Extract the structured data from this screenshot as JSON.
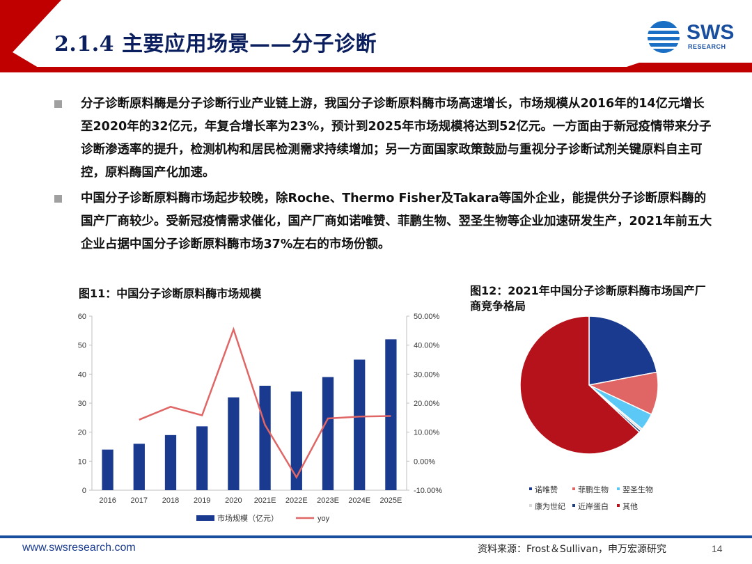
{
  "header": {
    "title": "2.1.4 主要应用场景——分子诊断",
    "logo_text": "SWS",
    "logo_sub": "RESEARCH"
  },
  "colors": {
    "header_red": "#c00000",
    "navy": "#1a3a8f",
    "line_red": "#e06666"
  },
  "bullets": [
    "分子诊断原料酶是分子诊断行业产业链上游，我国分子诊断原料酶市场高速增长，市场规模从2016年的14亿元增长至2020年的32亿元，年复合增长率为23%，预计到2025年市场规模将达到52亿元。一方面由于新冠疫情带来分子诊断渗透率的提升，检测机构和居民检测需求持续增加；另一方面国家政策鼓励与重视分子诊断试剂关键原料自主可控，原料酶国产化加速。",
    "中国分子诊断原料酶市场起步较晚，除Roche、Thermo Fisher及Takara等国外企业，能提供分子诊断原料酶的国产厂商较少。受新冠疫情需求催化，国产厂商如诺唯赞、菲鹏生物、翌圣生物等企业加速研发生产，2021年前五大企业占据中国分子诊断原料酶市场37%左右的市场份额。"
  ],
  "figures": {
    "fig11_title": "图11：中国分子诊断原料酶市场规模",
    "fig12_title": "图12：2021年中国分子诊断原料酶市场国产厂商竞争格局"
  },
  "chart_data": [
    {
      "type": "bar",
      "title": "图11：中国分子诊断原料酶市场规模",
      "categories": [
        "2016",
        "2017",
        "2018",
        "2019",
        "2020",
        "2021E",
        "2022E",
        "2023E",
        "2024E",
        "2025E"
      ],
      "series": [
        {
          "name": "市场规模（亿元）",
          "type": "bar",
          "axis": "left",
          "color": "#1a3a8f",
          "values": [
            14,
            16,
            19,
            22,
            32,
            36,
            34,
            39,
            45,
            52
          ]
        },
        {
          "name": "yoy",
          "type": "line",
          "axis": "right",
          "color": "#e06666",
          "values": [
            null,
            14.29,
            18.75,
            15.79,
            45.45,
            12.5,
            -5.56,
            14.71,
            15.38,
            15.56
          ]
        }
      ],
      "ylim": [
        0,
        60
      ],
      "yticks": [
        "0",
        "10",
        "20",
        "30",
        "40",
        "50",
        "60"
      ],
      "y2lim": [
        -10,
        50
      ],
      "y2ticks": [
        "-10.00%",
        "0.00%",
        "10.00%",
        "20.00%",
        "30.00%",
        "40.00%",
        "50.00%"
      ],
      "legend": "bottom"
    },
    {
      "type": "pie",
      "title": "图12：2021年中国分子诊断原料酶市场国产厂商竞争格局",
      "slices": [
        {
          "name": "诺唯赞",
          "value": 22,
          "color": "#1a3a8f"
        },
        {
          "name": "菲鹏生物",
          "value": 10,
          "color": "#e06666"
        },
        {
          "name": "翌圣生物",
          "value": 4,
          "color": "#5bc8f5"
        },
        {
          "name": "康为世纪",
          "value": 0.5,
          "color": "#d9d9d9"
        },
        {
          "name": "近岸蛋白",
          "value": 0.5,
          "color": "#1f3f7a"
        },
        {
          "name": "其他",
          "value": 63,
          "color": "#b5121b"
        }
      ],
      "legend": "bottom"
    }
  ],
  "footer": {
    "url": "www.swsresearch.com",
    "source": "资料来源：Frost＆Sullivan，申万宏源研究",
    "page": "14"
  }
}
